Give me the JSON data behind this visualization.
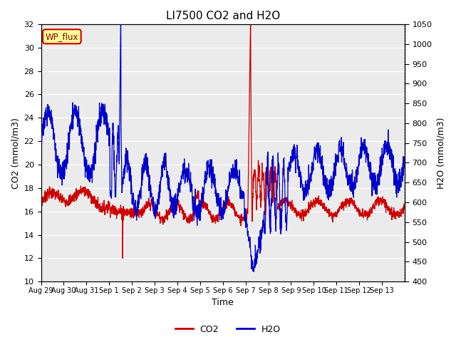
{
  "title": "LI7500 CO2 and H2O",
  "xlabel": "Time",
  "ylabel_left": "CO2 (mmol/m3)",
  "ylabel_right": "H2O (mmol/m3)",
  "ylim_left": [
    10,
    32
  ],
  "ylim_right": [
    400,
    1050
  ],
  "yticks_left": [
    10,
    12,
    14,
    16,
    18,
    20,
    22,
    24,
    26,
    28,
    30,
    32
  ],
  "yticks_right": [
    400,
    450,
    500,
    550,
    600,
    650,
    700,
    750,
    800,
    850,
    900,
    950,
    1000,
    1050
  ],
  "background_color": "#ebebeb",
  "grid_color": "#ffffff",
  "co2_color": "#cc0000",
  "h2o_color": "#0000cc",
  "legend_label_co2": "CO2",
  "legend_label_h2o": "H2O",
  "site_label": "WP_flux",
  "site_label_bg": "#ffff99",
  "site_label_border": "#cc0000",
  "n_points": 2016,
  "figsize": [
    6.4,
    4.8
  ],
  "dpi": 100
}
